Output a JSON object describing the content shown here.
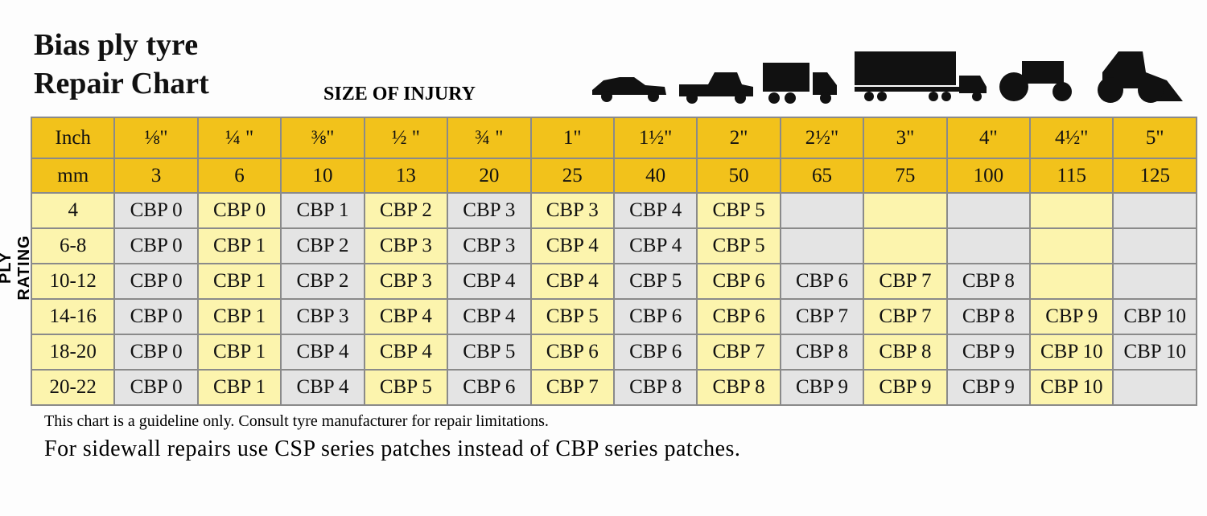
{
  "header": {
    "title_line1": "Bias ply tyre",
    "title_line2": "Repair Chart",
    "size_label": "SIZE OF INJURY",
    "side_label": "PLY RATING"
  },
  "table": {
    "inch_label": "Inch",
    "inches": [
      "⅛\"",
      "¼ \"",
      "⅜\"",
      "½ \"",
      "¾ \"",
      "1\"",
      "1½\"",
      "2\"",
      "2½\"",
      "3\"",
      "4\"",
      "4½\"",
      "5\""
    ],
    "mm_label": "mm",
    "mm": [
      3,
      6,
      10,
      13,
      20,
      25,
      40,
      50,
      65,
      75,
      100,
      115,
      125
    ],
    "rows": [
      {
        "label": "4",
        "cells": [
          "CBP 0",
          "CBP 0",
          "CBP 1",
          "CBP 2",
          "CBP 3",
          "CBP 3",
          "CBP 4",
          "CBP 5",
          null,
          null,
          null,
          null,
          null
        ]
      },
      {
        "label": "6-8",
        "cells": [
          "CBP 0",
          "CBP 1",
          "CBP 2",
          "CBP 3",
          "CBP 3",
          "CBP 4",
          "CBP 4",
          "CBP 5",
          null,
          null,
          null,
          null,
          null
        ]
      },
      {
        "label": "10-12",
        "cells": [
          "CBP 0",
          "CBP 1",
          "CBP 2",
          "CBP 3",
          "CBP 4",
          "CBP 4",
          "CBP 5",
          "CBP 6",
          "CBP 6",
          "CBP 7",
          "CBP 8",
          null,
          null
        ]
      },
      {
        "label": "14-16",
        "cells": [
          "CBP 0",
          "CBP 1",
          "CBP 3",
          "CBP 4",
          "CBP 4",
          "CBP 5",
          "CBP 6",
          "CBP 6",
          "CBP 7",
          "CBP 7",
          "CBP 8",
          "CBP 9",
          "CBP 10"
        ]
      },
      {
        "label": "18-20",
        "cells": [
          "CBP 0",
          "CBP 1",
          "CBP 4",
          "CBP 4",
          "CBP 5",
          "CBP 6",
          "CBP 6",
          "CBP 7",
          "CBP 8",
          "CBP 8",
          "CBP 9",
          "CBP 10",
          "CBP 10"
        ]
      },
      {
        "label": "20-22",
        "cells": [
          "CBP 0",
          "CBP 1",
          "CBP 4",
          "CBP 5",
          "CBP 6",
          "CBP 7",
          "CBP 8",
          "CBP 8",
          "CBP 9",
          "CBP 9",
          "CBP 9",
          "CBP 10",
          null
        ]
      }
    ]
  },
  "notes": {
    "line1": "This chart is a guideline only. Consult tyre manufacturer for repair limitations.",
    "line2": "For sidewall repairs use CSP series patches instead of CBP series patches."
  }
}
